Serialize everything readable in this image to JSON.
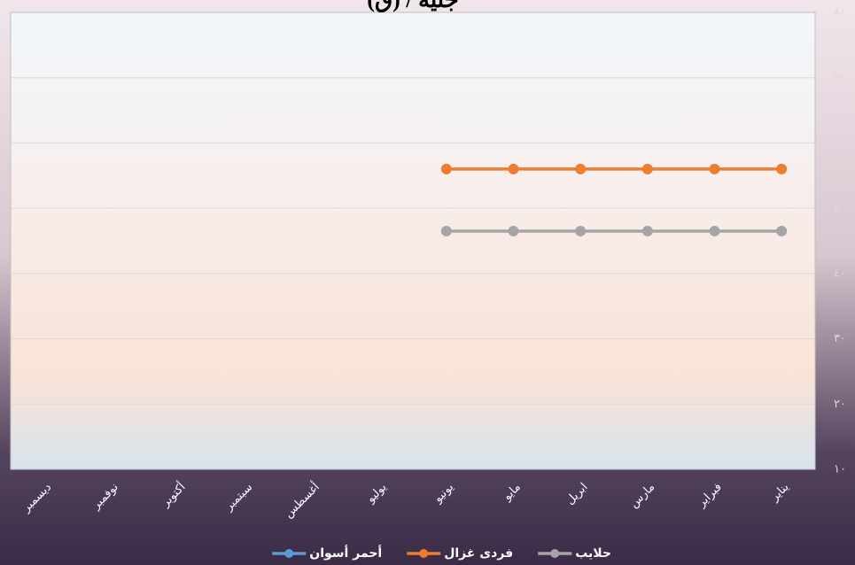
{
  "chart_data": {
    "type": "line",
    "title": "جنيه / (ق)",
    "categories": [
      "يناير",
      "فبراير",
      "مارس",
      "ابريل",
      "مايو",
      "يونيو",
      "يوليو",
      "أغسطس",
      "سبتمبر",
      "أكتوبر",
      "نوفمبر",
      "ديسمبر"
    ],
    "series": [
      {
        "name": "حلايب",
        "color": "#a5a5a5",
        "values": [
          46.5,
          46.5,
          46.5,
          46.5,
          46.5,
          46.5,
          null,
          null,
          null,
          null,
          null,
          null
        ]
      },
      {
        "name": "فردى غزال",
        "color": "#ed7d31",
        "values": [
          56,
          56,
          56,
          56,
          56,
          56,
          null,
          null,
          null,
          null,
          null,
          null
        ]
      },
      {
        "name": "أحمر أسوان",
        "color": "#5b9bd5",
        "values": [
          null,
          null,
          null,
          null,
          null,
          null,
          null,
          null,
          null,
          null,
          null,
          null
        ]
      }
    ],
    "x_reversed": true,
    "ylim": [
      10,
      80
    ],
    "yticks": [
      {
        "value": 10,
        "label": "١٠"
      },
      {
        "value": 20,
        "label": "٢٠"
      },
      {
        "value": 30,
        "label": "٣٠"
      },
      {
        "value": 40,
        "label": "٤٠"
      },
      {
        "value": 50,
        "label": "٥٠"
      },
      {
        "value": 60,
        "label": "٦٠"
      },
      {
        "value": 70,
        "label": "٧٠"
      },
      {
        "value": 80,
        "label": "٨٠"
      }
    ],
    "grid": true,
    "legend": "bottom"
  }
}
